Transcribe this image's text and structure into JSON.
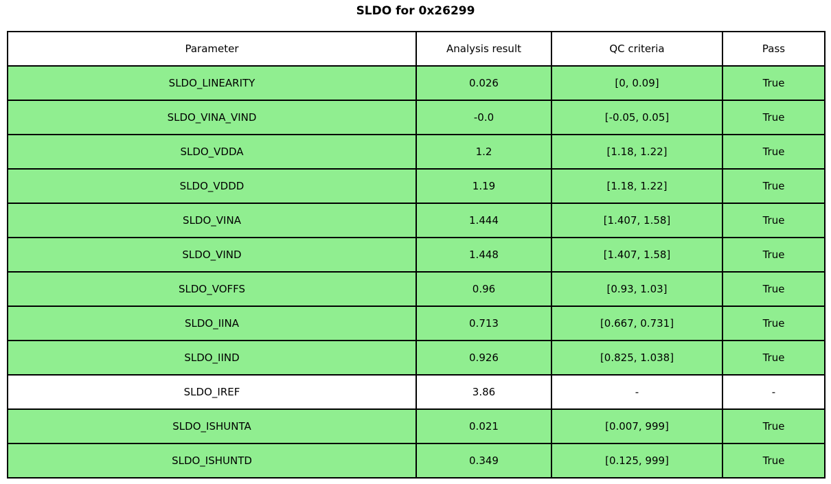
{
  "title": "SLDO for 0x26299",
  "colors": {
    "pass_row_green": "#90ee90",
    "neutral_row_white": "#ffffff",
    "border_black": "#000000",
    "text_black": "#000000"
  },
  "table": {
    "headers": [
      "Parameter",
      "Analysis result",
      "QC criteria",
      "Pass"
    ],
    "rows": [
      {
        "parameter": "SLDO_LINEARITY",
        "analysis_result": "0.026",
        "qc_criteria": "[0, 0.09]",
        "pass": "True",
        "highlighted": true
      },
      {
        "parameter": "SLDO_VINA_VIND",
        "analysis_result": "-0.0",
        "qc_criteria": "[-0.05, 0.05]",
        "pass": "True",
        "highlighted": true
      },
      {
        "parameter": "SLDO_VDDA",
        "analysis_result": "1.2",
        "qc_criteria": "[1.18, 1.22]",
        "pass": "True",
        "highlighted": true
      },
      {
        "parameter": "SLDO_VDDD",
        "analysis_result": "1.19",
        "qc_criteria": "[1.18, 1.22]",
        "pass": "True",
        "highlighted": true
      },
      {
        "parameter": "SLDO_VINA",
        "analysis_result": "1.444",
        "qc_criteria": "[1.407, 1.58]",
        "pass": "True",
        "highlighted": true
      },
      {
        "parameter": "SLDO_VIND",
        "analysis_result": "1.448",
        "qc_criteria": "[1.407, 1.58]",
        "pass": "True",
        "highlighted": true
      },
      {
        "parameter": "SLDO_VOFFS",
        "analysis_result": "0.96",
        "qc_criteria": "[0.93, 1.03]",
        "pass": "True",
        "highlighted": true
      },
      {
        "parameter": "SLDO_IINA",
        "analysis_result": "0.713",
        "qc_criteria": "[0.667, 0.731]",
        "pass": "True",
        "highlighted": true
      },
      {
        "parameter": "SLDO_IIND",
        "analysis_result": "0.926",
        "qc_criteria": "[0.825, 1.038]",
        "pass": "True",
        "highlighted": true
      },
      {
        "parameter": "SLDO_IREF",
        "analysis_result": "3.86",
        "qc_criteria": "-",
        "pass": "-",
        "highlighted": false
      },
      {
        "parameter": "SLDO_ISHUNTA",
        "analysis_result": "0.021",
        "qc_criteria": "[0.007, 999]",
        "pass": "True",
        "highlighted": true
      },
      {
        "parameter": "SLDO_ISHUNTD",
        "analysis_result": "0.349",
        "qc_criteria": "[0.125, 999]",
        "pass": "True",
        "highlighted": true
      }
    ]
  },
  "chart_data": {
    "type": "table",
    "title": "SLDO for 0x26299",
    "columns": [
      "Parameter",
      "Analysis result",
      "QC criteria",
      "Pass"
    ],
    "rows": [
      [
        "SLDO_LINEARITY",
        "0.026",
        "[0, 0.09]",
        "True"
      ],
      [
        "SLDO_VINA_VIND",
        "-0.0",
        "[-0.05, 0.05]",
        "True"
      ],
      [
        "SLDO_VDDA",
        "1.2",
        "[1.18, 1.22]",
        "True"
      ],
      [
        "SLDO_VDDD",
        "1.19",
        "[1.18, 1.22]",
        "True"
      ],
      [
        "SLDO_VINA",
        "1.444",
        "[1.407, 1.58]",
        "True"
      ],
      [
        "SLDO_VIND",
        "1.448",
        "[1.407, 1.58]",
        "True"
      ],
      [
        "SLDO_VOFFS",
        "0.96",
        "[0.93, 1.03]",
        "True"
      ],
      [
        "SLDO_IINA",
        "0.713",
        "[0.667, 0.731]",
        "True"
      ],
      [
        "SLDO_IIND",
        "0.926",
        "[0.825, 1.038]",
        "True"
      ],
      [
        "SLDO_IREF",
        "3.86",
        "-",
        "-"
      ],
      [
        "SLDO_ISHUNTA",
        "0.021",
        "[0.007, 999]",
        "True"
      ],
      [
        "SLDO_ISHUNTD",
        "0.349",
        "[0.125, 999]",
        "True"
      ]
    ],
    "row_highlighted": [
      true,
      true,
      true,
      true,
      true,
      true,
      true,
      true,
      true,
      false,
      true,
      true
    ],
    "highlight_color": "#90ee90",
    "layout_hints": {
      "header_background": "#ffffff",
      "grid": true,
      "column_width_fractions": [
        0.5,
        0.1655,
        0.2092,
        0.1252
      ]
    }
  }
}
